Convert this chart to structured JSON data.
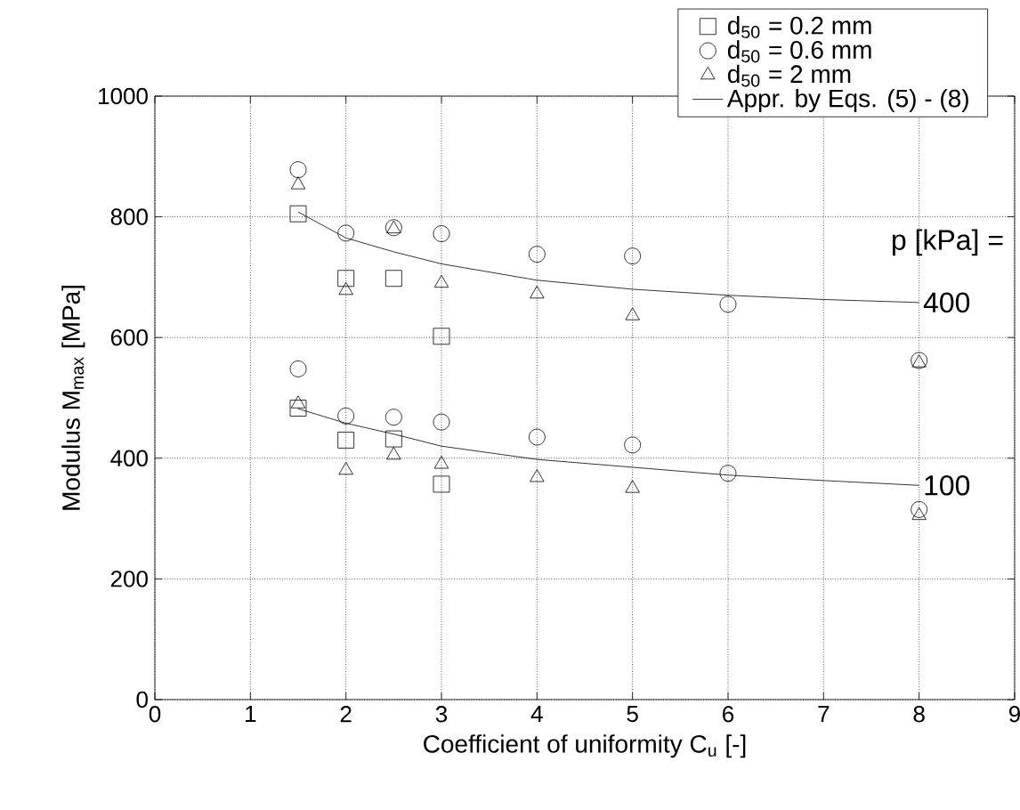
{
  "chart_data": {
    "type": "scatter",
    "xlabel": "Coefficient of uniformity C$_{u}$ [-]",
    "ylabel": "Modulus M$_{max}$ [MPa]",
    "xlim": [
      0,
      9
    ],
    "ylim": [
      0,
      1000
    ],
    "xticks": [
      0,
      1,
      2,
      3,
      4,
      5,
      6,
      7,
      8,
      9
    ],
    "yticks": [
      0,
      200,
      400,
      600,
      800,
      1000
    ],
    "grid": true,
    "legend": "top right",
    "series": [
      {
        "name": "d$_{50}$ = 0.2 mm",
        "color": "#000000",
        "marker": "square",
        "x": [
          1.5,
          2,
          2.5,
          3,
          1.5,
          2,
          2.5,
          3
        ],
        "values": [
          805,
          698,
          698,
          602,
          483,
          430,
          432,
          357
        ]
      },
      {
        "name": "d$_{50}$ = 0.6 mm",
        "color": "#000000",
        "marker": "circle",
        "x": [
          1.5,
          2,
          2.5,
          3,
          4,
          5,
          6,
          8,
          1.5,
          2,
          2.5,
          3,
          4,
          5,
          6,
          8
        ],
        "values": [
          878,
          773,
          782,
          772,
          738,
          735,
          655,
          562,
          548,
          470,
          468,
          460,
          435,
          422,
          375,
          315
        ]
      },
      {
        "name": "d$_{50}$ = 2 mm",
        "color": "#000000",
        "marker": "triangle",
        "x": [
          1.5,
          2,
          2.5,
          3,
          4,
          5,
          8,
          1.5,
          2,
          2.5,
          3,
          4,
          5,
          8
        ],
        "values": [
          853,
          678,
          780,
          690,
          672,
          636,
          558,
          490,
          380,
          405,
          390,
          368,
          350,
          305
        ]
      },
      {
        "name": "Appr. by Eqs. (5) - (8)",
        "type": "line",
        "color": "#000000",
        "marker": "none",
        "x": [
          1.5,
          2,
          2.5,
          3,
          4,
          5,
          6,
          7,
          8
        ],
        "values": [
          808,
          765,
          742,
          722,
          695,
          680,
          670,
          663,
          658
        ]
      },
      {
        "type": "line",
        "color": "#000000",
        "marker": "none",
        "x": [
          1.5,
          2,
          2.5,
          3,
          4,
          5,
          6,
          7,
          8
        ],
        "values": [
          482,
          458,
          440,
          420,
          398,
          385,
          372,
          363,
          355
        ]
      }
    ],
    "annotations": [
      "p [kPa] =",
      {
        "text": "400",
        "x": 8,
        "y": 658
      },
      {
        "text": "100",
        "x": 8,
        "y": 355
      }
    ]
  }
}
